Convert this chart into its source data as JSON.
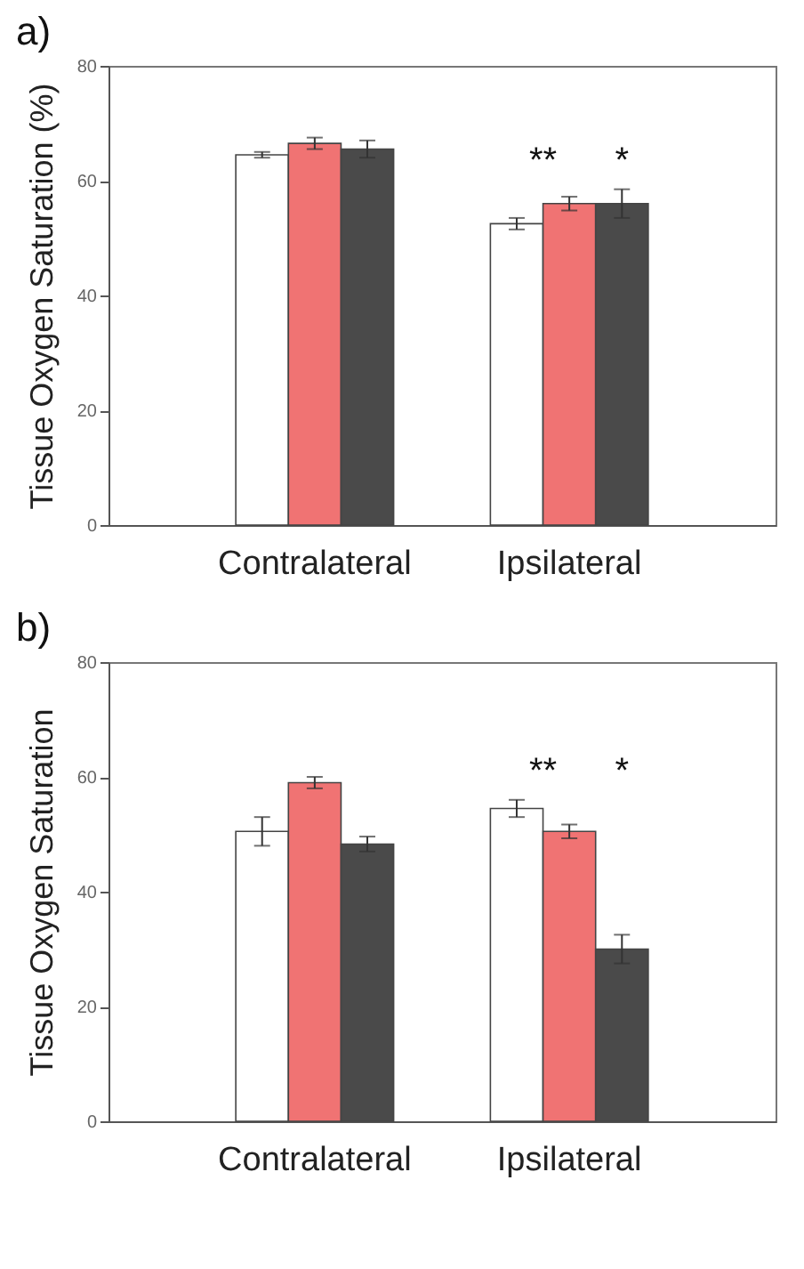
{
  "chart_data": [
    {
      "type": "bar",
      "title": "a)",
      "ylabel": "Tissue Oxygen Saturation (%)",
      "categories": [
        "Contralateral",
        "Ipsilateral"
      ],
      "series": [
        {
          "color": "#ffffff",
          "values": [
            64.5,
            52.5
          ],
          "errors": [
            0.5,
            1
          ]
        },
        {
          "color": "#f07373",
          "values": [
            66.5,
            56
          ],
          "errors": [
            1,
            1.2
          ]
        },
        {
          "color": "#4a4a4a",
          "values": [
            65.5,
            56
          ],
          "errors": [
            1.5,
            2.5
          ]
        }
      ],
      "ylim": [
        0,
        80
      ],
      "yticks": [
        0,
        20,
        40,
        60,
        80
      ],
      "grid": false,
      "legend": false,
      "annotations": [
        "**",
        "*"
      ]
    },
    {
      "type": "bar",
      "title": "b)",
      "ylabel": "Tissue Oxygen Saturation",
      "categories": [
        "Contralateral",
        "Ipsilateral"
      ],
      "series": [
        {
          "color": "#ffffff",
          "values": [
            50.5,
            54.5
          ],
          "errors": [
            2.5,
            1.5
          ]
        },
        {
          "color": "#f07373",
          "values": [
            59,
            50.5
          ],
          "errors": [
            1,
            1.2
          ]
        },
        {
          "color": "#4a4a4a",
          "values": [
            48.3,
            30
          ],
          "errors": [
            1.3,
            2.5
          ]
        }
      ],
      "ylim": [
        0,
        80
      ],
      "yticks": [
        0,
        20,
        40,
        60,
        80
      ],
      "grid": false,
      "legend": false,
      "annotations": [
        "**",
        "*"
      ]
    }
  ]
}
